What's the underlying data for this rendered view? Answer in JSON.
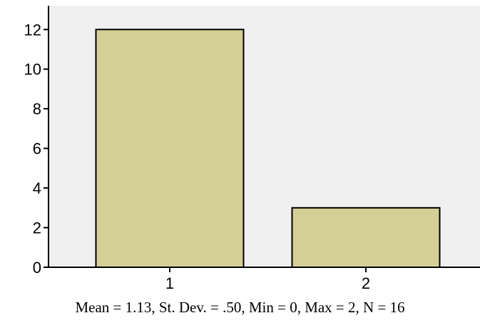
{
  "chart_data": {
    "type": "bar",
    "categories": [
      "1",
      "2"
    ],
    "values": [
      12,
      3
    ],
    "title": "",
    "xlabel": "",
    "ylabel": "",
    "ylim": [
      0,
      13.2
    ],
    "yticks": [
      "0",
      "2",
      "4",
      "6",
      "8",
      "10",
      "12"
    ],
    "grid": false,
    "colors": {
      "bar": "#d4cf96",
      "plot_bg": "#f0f0f0",
      "stroke": "#000000"
    }
  },
  "caption": "Mean = 1.13, St. Dev. = .50, Min = 0, Max = 2, N = 16"
}
